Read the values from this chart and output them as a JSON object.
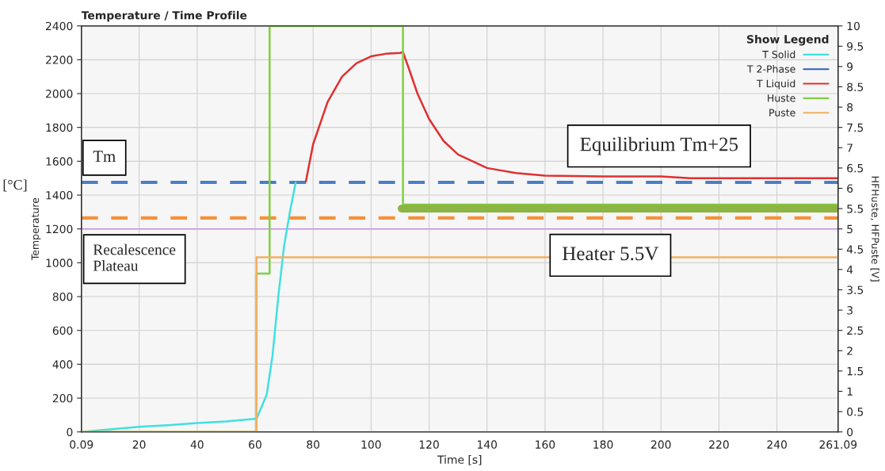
{
  "chart_data": {
    "type": "line",
    "title": "Temperature / Time Profile",
    "xlabel": "Time [s]",
    "ylabel": "Temperature",
    "y2label": "HFHuste, HFPuste [V]",
    "legend_title": "Show Legend",
    "annotations": [
      "[°C]",
      "Tm",
      "Recalescence\nPlateau",
      "Equilibrium Tm+25",
      "Heater 5.5V"
    ],
    "series": [
      {
        "name": "T Solid",
        "color": "#40e0e0",
        "x": [
          0.09,
          10,
          20,
          30,
          40,
          50,
          60.5,
          64,
          66,
          68,
          70,
          72,
          74
        ],
        "values": [
          0,
          15,
          30,
          40,
          52,
          62,
          78,
          220,
          450,
          800,
          1100,
          1300,
          1475
        ]
      },
      {
        "name": "T 2-Phase",
        "color": "#3060c0"
      },
      {
        "name": "T Liquid",
        "color": "#e03030",
        "x": [
          77.5,
          80,
          85,
          90,
          95,
          100,
          105,
          110,
          111,
          113,
          116,
          120,
          125,
          130,
          140,
          150,
          160,
          180,
          200,
          210,
          261.09
        ],
        "values": [
          1480,
          1700,
          1950,
          2100,
          2180,
          2220,
          2235,
          2240,
          2245,
          2150,
          2000,
          1850,
          1720,
          1640,
          1560,
          1530,
          1515,
          1510,
          1510,
          1500,
          1500
        ]
      },
      {
        "name": "Huste",
        "color": "#80d040",
        "axis": "y2",
        "type": "step",
        "x": [
          0.09,
          60.5,
          65,
          111,
          261.09
        ],
        "values": [
          0,
          3.9,
          10,
          5.6,
          5.6
        ]
      },
      {
        "name": "Puste",
        "color": "#f0b060",
        "axis": "y2",
        "type": "step",
        "x": [
          0.09,
          60.5,
          261.09
        ],
        "values": [
          0,
          4.3,
          4.3
        ]
      },
      {
        "color": "#8db545",
        "axis": "y2",
        "x": [
          110.5,
          261.09
        ],
        "values": [
          5.5,
          5.5
        ]
      }
    ],
    "ref_lines": [
      {
        "axis": "y",
        "value": 1475,
        "color": "#4a7ec4",
        "line_style": "dashed"
      },
      {
        "axis": "y",
        "value": 1265,
        "color": "#f5913a",
        "line_style": "dashed"
      },
      {
        "axis": "y",
        "value": 1200,
        "color": "#c890e0",
        "line_style": "solid"
      }
    ],
    "xlim": [
      0.09,
      261.09
    ],
    "xticks": [
      0.09,
      20,
      40,
      60,
      80,
      100,
      120,
      140,
      160,
      180,
      200,
      220,
      240,
      261.09
    ],
    "ylim": [
      0,
      2400
    ],
    "yticks": [
      0,
      200,
      400,
      600,
      800,
      1000,
      1200,
      1400,
      1600,
      1800,
      2000,
      2200,
      2400
    ],
    "y2lim": [
      0,
      10
    ],
    "y2ticks": [
      0,
      0.5,
      1,
      1.5,
      2,
      2.5,
      3,
      3.5,
      4,
      4.5,
      5,
      5.5,
      6,
      6.5,
      7,
      7.5,
      8,
      8.5,
      9,
      9.5,
      10
    ],
    "grid": true,
    "legend": "top right"
  }
}
